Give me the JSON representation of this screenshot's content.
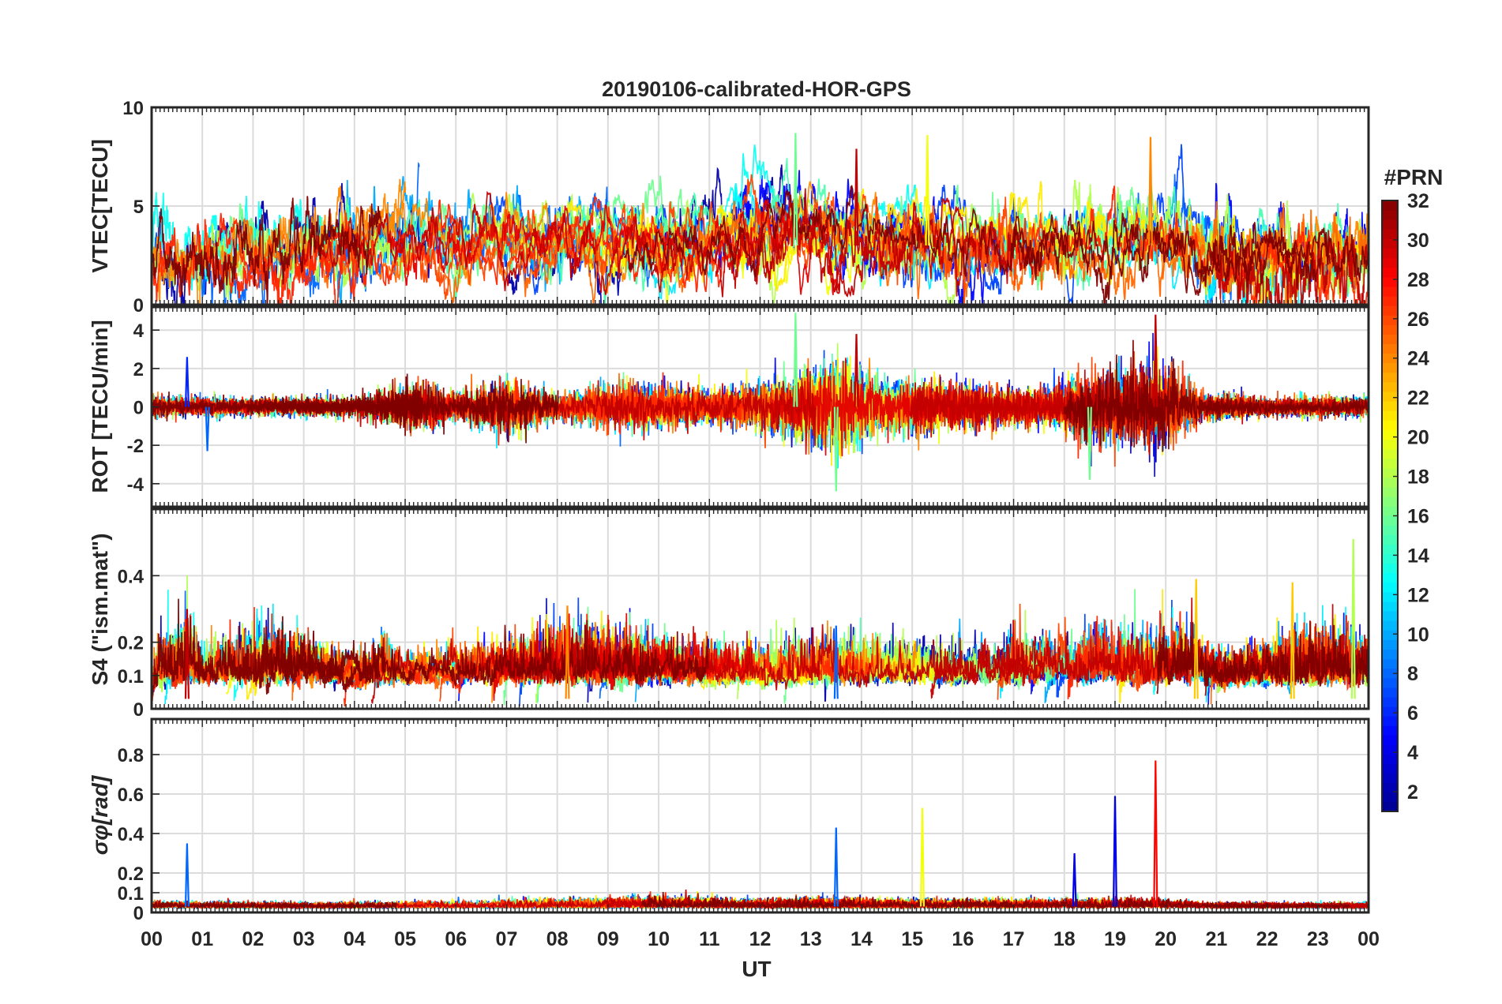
{
  "chart_data": {
    "type": "line",
    "title": "20190106-calibrated-HOR-GPS",
    "xlabel": "UT",
    "x_range": [
      0,
      24
    ],
    "x_ticks": [
      "00",
      "01",
      "02",
      "03",
      "04",
      "05",
      "06",
      "07",
      "08",
      "09",
      "10",
      "11",
      "12",
      "13",
      "14",
      "15",
      "16",
      "17",
      "18",
      "19",
      "20",
      "21",
      "22",
      "23",
      "00"
    ],
    "colorbar": {
      "label": "#PRN",
      "range": [
        1,
        32
      ],
      "ticks": [
        "2",
        "4",
        "6",
        "8",
        "10",
        "12",
        "14",
        "16",
        "18",
        "20",
        "22",
        "24",
        "26",
        "28",
        "30",
        "32"
      ],
      "colors": [
        "#00008f",
        "#0000ff",
        "#0080ff",
        "#00ffff",
        "#80ff80",
        "#ffff00",
        "#ff8000",
        "#ff0000",
        "#800000"
      ]
    },
    "panels": [
      {
        "id": "vtec",
        "ylabel": "VTEC[TECU]",
        "ylim": [
          0,
          10
        ],
        "y_ticks": [
          "0",
          "5",
          "10"
        ],
        "activity": [
          [
            0,
            2.6
          ],
          [
            1,
            2.3
          ],
          [
            2,
            2.4
          ],
          [
            3,
            2.6
          ],
          [
            4,
            3.1
          ],
          [
            5,
            3.5
          ],
          [
            6,
            3.3
          ],
          [
            7,
            3.4
          ],
          [
            8,
            3.2
          ],
          [
            9,
            3.4
          ],
          [
            10,
            3.3
          ],
          [
            11,
            3.2
          ],
          [
            12,
            3.6
          ],
          [
            13,
            3.7
          ],
          [
            14,
            3.4
          ],
          [
            15,
            3.5
          ],
          [
            16,
            3.2
          ],
          [
            17,
            3.1
          ],
          [
            18,
            2.9
          ],
          [
            19,
            3.3
          ],
          [
            20,
            3.8
          ],
          [
            21,
            2.5
          ],
          [
            22,
            2.1
          ],
          [
            23,
            2.2
          ],
          [
            24,
            2.3
          ]
        ],
        "peak_prn": [
          [
            12.7,
            16
          ],
          [
            13.9,
            30
          ],
          [
            15.3,
            20
          ],
          [
            19.7,
            24
          ]
        ],
        "peak_values": [
          8.7,
          7.9,
          8.6,
          8.5
        ]
      },
      {
        "id": "rot",
        "ylabel": "ROT [TECU/min]",
        "ylim": [
          -5.2,
          5.2
        ],
        "y_ticks": [
          "-4",
          "-2",
          "0",
          "2",
          "4"
        ],
        "activity": [
          [
            0,
            0.4
          ],
          [
            2,
            0.3
          ],
          [
            4,
            0.35
          ],
          [
            5.3,
            0.9
          ],
          [
            6,
            0.5
          ],
          [
            7,
            1.0
          ],
          [
            8,
            0.5
          ],
          [
            9.5,
            0.9
          ],
          [
            11,
            0.6
          ],
          [
            12.5,
            0.9
          ],
          [
            13.5,
            1.6
          ],
          [
            14.5,
            0.9
          ],
          [
            15.5,
            0.9
          ],
          [
            16.5,
            0.7
          ],
          [
            17.5,
            0.6
          ],
          [
            18.6,
            1.2
          ],
          [
            19.8,
            1.6
          ],
          [
            20.7,
            0.5
          ],
          [
            22,
            0.3
          ],
          [
            24,
            0.35
          ]
        ],
        "peak_prn": [
          [
            0.7,
            6
          ],
          [
            1.1,
            8
          ],
          [
            12.7,
            16
          ],
          [
            13.5,
            16
          ],
          [
            13.9,
            30
          ],
          [
            18.5,
            16
          ],
          [
            19.8,
            30
          ]
        ],
        "peak_values": [
          2.6,
          -2.3,
          4.9,
          -4.4,
          3.8,
          -3.8,
          4.8
        ]
      },
      {
        "id": "s4",
        "ylabel": "S4 (\"ism.mat\")",
        "ylim": [
          0,
          0.6
        ],
        "y_ticks": [
          "0",
          "0.1",
          "0.2",
          "0.4"
        ],
        "activity": [
          [
            0,
            0.09
          ],
          [
            0.7,
            0.16
          ],
          [
            1,
            0.08
          ],
          [
            2.5,
            0.12
          ],
          [
            4,
            0.05
          ],
          [
            4.5,
            0.1
          ],
          [
            5,
            0.05
          ],
          [
            6.5,
            0.08
          ],
          [
            7.5,
            0.11
          ],
          [
            8.5,
            0.12
          ],
          [
            9.5,
            0.12
          ],
          [
            10.5,
            0.08
          ],
          [
            11.5,
            0.07
          ],
          [
            12.5,
            0.09
          ],
          [
            13.5,
            0.1
          ],
          [
            14.5,
            0.09
          ],
          [
            15.5,
            0.08
          ],
          [
            16.5,
            0.08
          ],
          [
            17,
            0.12
          ],
          [
            18,
            0.08
          ],
          [
            18.5,
            0.12
          ],
          [
            19.5,
            0.11
          ],
          [
            20.5,
            0.12
          ],
          [
            21,
            0.05
          ],
          [
            22,
            0.08
          ],
          [
            23,
            0.12
          ],
          [
            24,
            0.1
          ]
        ],
        "peak_prn": [
          [
            0.7,
            30
          ],
          [
            8.2,
            24
          ],
          [
            13.5,
            8
          ],
          [
            20.6,
            22
          ],
          [
            22.5,
            22
          ],
          [
            23.7,
            18
          ]
        ],
        "peak_values": [
          0.3,
          0.31,
          0.25,
          0.39,
          0.38,
          0.51
        ]
      },
      {
        "id": "sigma",
        "ylabel": "σφ[rad]",
        "ylim": [
          0,
          0.98
        ],
        "y_ticks": [
          "0",
          "0.1",
          "0.2",
          "0.4",
          "0.6",
          "0.8"
        ],
        "activity": [
          [
            0,
            0.04
          ],
          [
            3,
            0.03
          ],
          [
            6,
            0.04
          ],
          [
            9,
            0.06
          ],
          [
            10,
            0.07
          ],
          [
            12,
            0.05
          ],
          [
            13,
            0.06
          ],
          [
            15,
            0.05
          ],
          [
            18,
            0.05
          ],
          [
            19.8,
            0.06
          ],
          [
            21,
            0.03
          ],
          [
            24,
            0.03
          ]
        ],
        "peak_prn": [
          [
            0.7,
            8
          ],
          [
            13.5,
            8
          ],
          [
            15.2,
            20
          ],
          [
            18.2,
            4
          ],
          [
            19.0,
            4
          ],
          [
            19.8,
            28
          ]
        ],
        "peak_values": [
          0.35,
          0.43,
          0.53,
          0.3,
          0.59,
          0.77
        ]
      }
    ]
  }
}
